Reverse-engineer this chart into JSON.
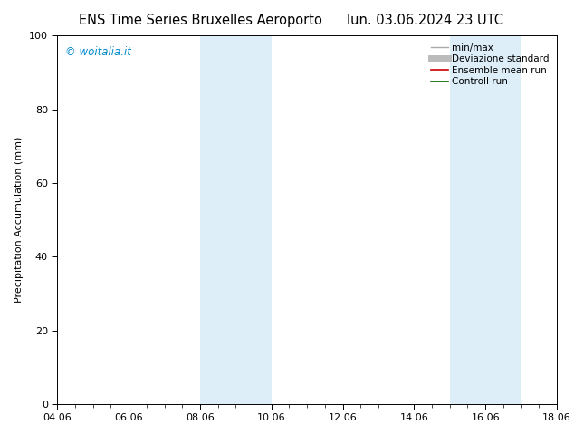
{
  "title_left": "ENS Time Series Bruxelles Aeroporto",
  "title_right": "lun. 03.06.2024 23 UTC",
  "ylabel": "Precipitation Accumulation (mm)",
  "ylim": [
    0,
    100
  ],
  "yticks": [
    0,
    20,
    40,
    60,
    80,
    100
  ],
  "xtick_labels": [
    "04.06",
    "06.06",
    "08.06",
    "10.06",
    "12.06",
    "14.06",
    "16.06",
    "18.06"
  ],
  "xtick_positions": [
    0,
    2,
    4,
    6,
    8,
    10,
    12,
    14
  ],
  "xlim": [
    0,
    14
  ],
  "shaded_bands": [
    {
      "xmin": 4.0,
      "xmax": 5.0
    },
    {
      "xmin": 5.0,
      "xmax": 6.0
    },
    {
      "xmin": 11.0,
      "xmax": 12.0
    },
    {
      "xmin": 12.0,
      "xmax": 13.0
    }
  ],
  "band_color": "#ddeef8",
  "watermark_text": "© woitalia.it",
  "watermark_color": "#0088cc",
  "legend_entries": [
    {
      "label": "min/max",
      "color": "#aaaaaa",
      "lw": 1.0
    },
    {
      "label": "Deviazione standard",
      "color": "#bbbbbb",
      "lw": 5
    },
    {
      "label": "Ensemble mean run",
      "color": "#cc0000",
      "lw": 1.2
    },
    {
      "label": "Controll run",
      "color": "#006600",
      "lw": 1.2
    }
  ],
  "background_color": "#ffffff",
  "title_fontsize": 10.5,
  "ylabel_fontsize": 8,
  "tick_fontsize": 8,
  "legend_fontsize": 7.5
}
